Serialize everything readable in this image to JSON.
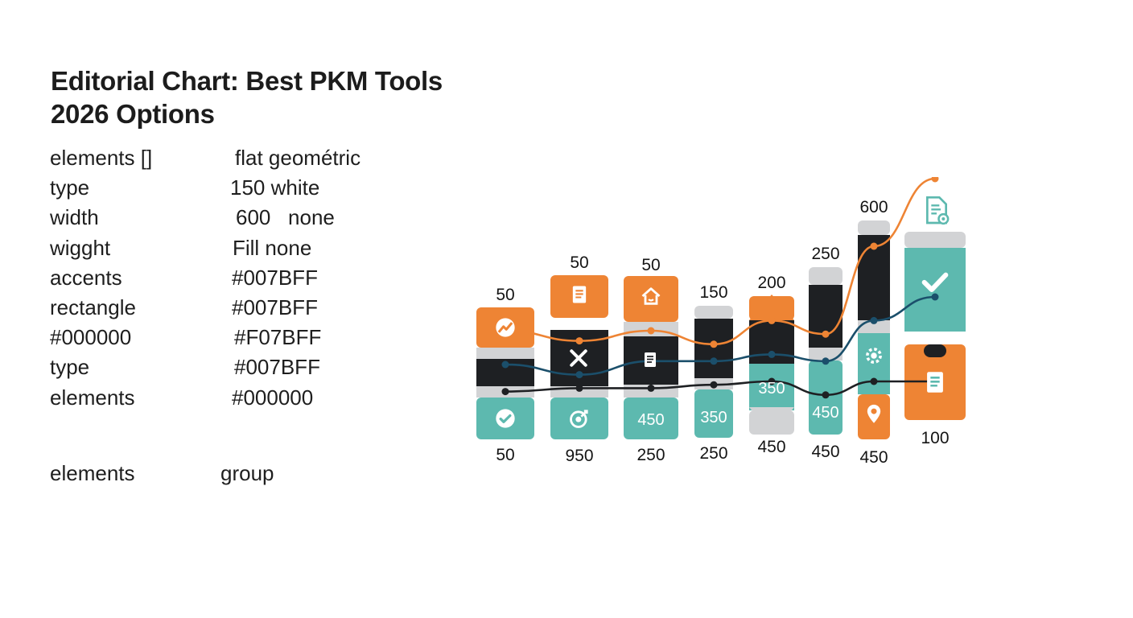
{
  "title": {
    "line1": "Editorial Chart: Best PKM Tools",
    "line2": "2026 Options"
  },
  "spec_rows": [
    {
      "key": "elements []",
      "value": "flat geométric"
    },
    {
      "key": "type",
      "value": "150 white"
    },
    {
      "key": "width",
      "value": "600   none"
    },
    {
      "key": "wigght",
      "value": "Fill none"
    },
    {
      "key": "accents",
      "value": "#007BFF"
    },
    {
      "key": "rectangle",
      "value": "#007BFF"
    },
    {
      "key": "#000000",
      "value": "#F07BFF"
    },
    {
      "key": "type",
      "value": "#007BFF"
    },
    {
      "key": "elements",
      "value": "#000000"
    }
  ],
  "footer_row": {
    "key": "elements",
    "value": "group"
  },
  "colors": {
    "orange": "#EE8434",
    "teal": "#5DB9AF",
    "dark": "#1E2023",
    "gray": "#D2D3D5",
    "navy": "#1B4F6B",
    "text": "#141414"
  },
  "chart_data": {
    "type": "bar",
    "categories": [
      "",
      "",
      "",
      "",
      "",
      "",
      "",
      ""
    ],
    "top_labels": [
      "50",
      "50",
      "50",
      "150",
      "200",
      "250",
      "600",
      ""
    ],
    "mid_labels": [
      "",
      "",
      "450",
      "350",
      "350",
      "450",
      "",
      ""
    ],
    "bottom_labels": [
      "50",
      "950",
      "250",
      "250",
      "450",
      "450",
      "450",
      "100"
    ],
    "top_values": [
      50,
      50,
      50,
      150,
      200,
      250,
      600,
      null
    ],
    "mid_values": [
      null,
      null,
      450,
      350,
      350,
      450,
      null,
      null
    ],
    "bottom_values": [
      50,
      950,
      250,
      250,
      450,
      450,
      450,
      100
    ],
    "icons": [
      {
        "top": "chart-icon",
        "bottom": "check-icon"
      },
      {
        "top": "document-icon",
        "bottom": "target-icon"
      },
      {
        "top": "home-icon",
        "bottom": ""
      },
      {
        "top": "",
        "bottom": ""
      },
      {
        "top": "",
        "bottom": ""
      },
      {
        "top": "",
        "bottom": ""
      },
      {
        "top": "",
        "bottom": "location-pin-icon"
      },
      {
        "top": "check-icon",
        "bottom": "document-icon"
      }
    ],
    "corner_icon": "document-settings-icon",
    "line_series": [
      {
        "color": "orange",
        "values": [
          45,
          42,
          45,
          41,
          48,
          44,
          70,
          90
        ]
      },
      {
        "color": "navy",
        "values": [
          35,
          32,
          36,
          36,
          38,
          36,
          48,
          55
        ]
      },
      {
        "color": "dark",
        "values": [
          27,
          28,
          28,
          29,
          30,
          26,
          30,
          30
        ]
      }
    ],
    "grid": false,
    "legend": "none"
  }
}
